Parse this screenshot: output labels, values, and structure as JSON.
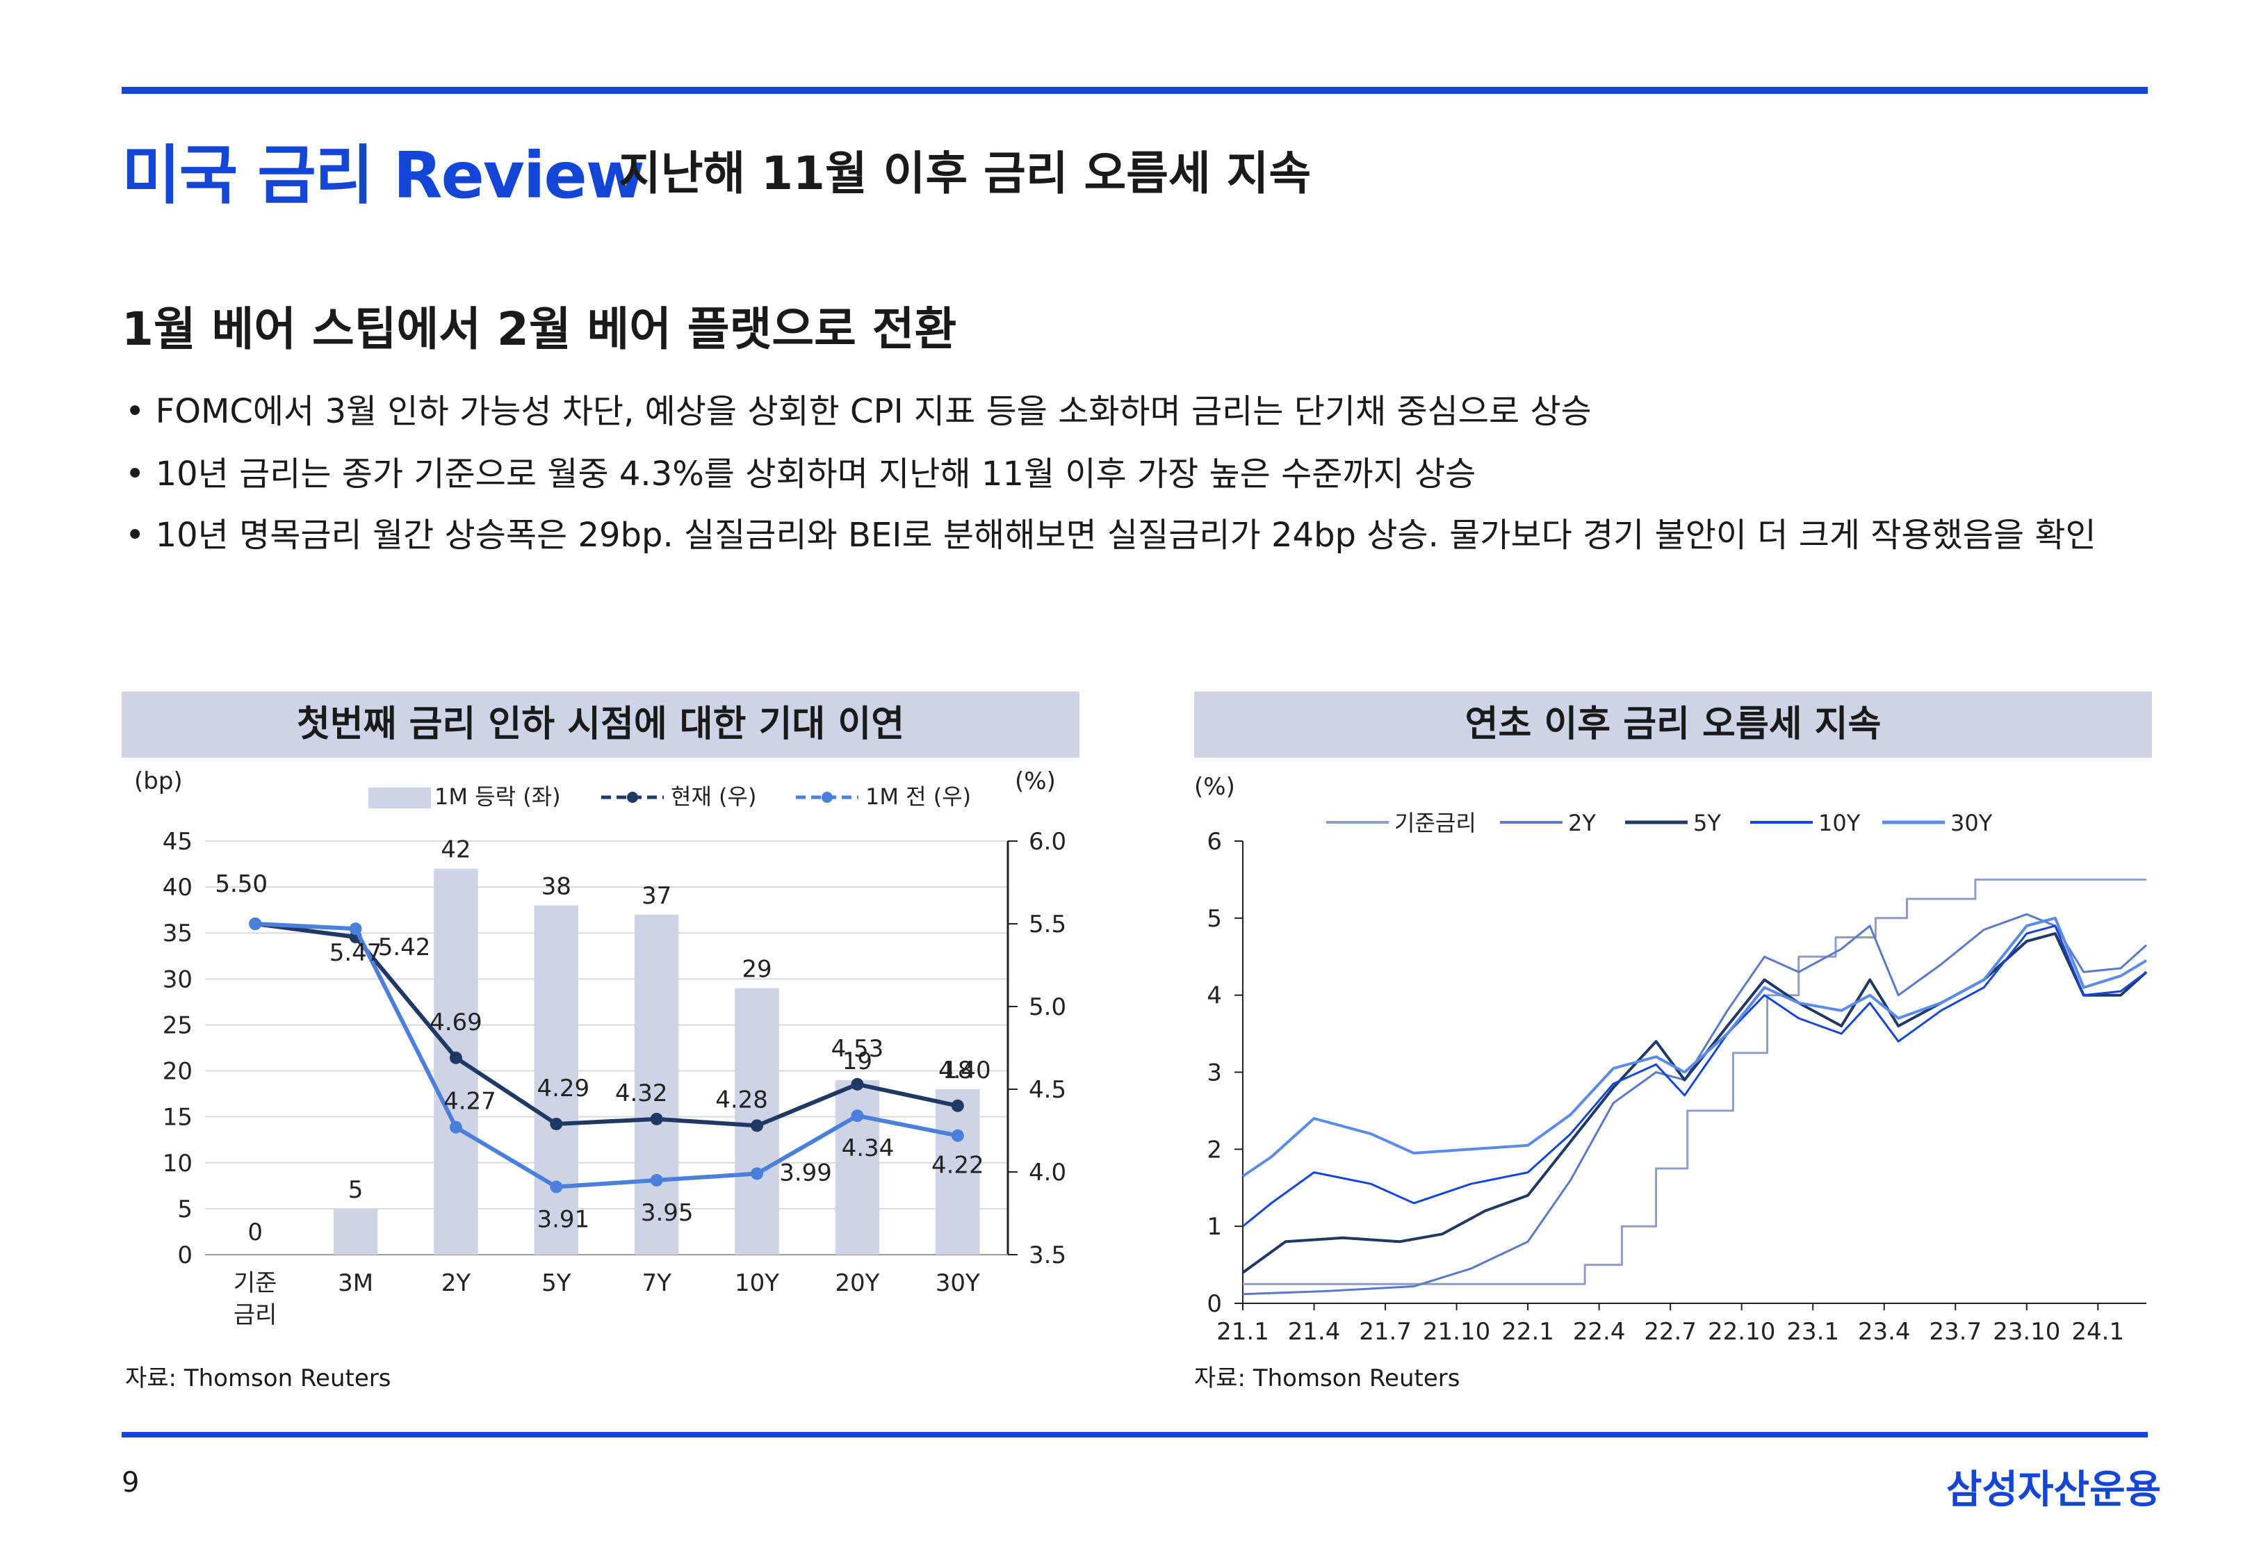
{
  "header": {
    "title": "미국 금리 Review",
    "subtitle": "지난해 11월 이후 금리 오름세 지속"
  },
  "section_heading": "1월 베어 스팁에서 2월 베어 플랫으로 전환",
  "bullets": [
    "FOMC에서 3월 인하 가능성 차단, 예상을 상회한 CPI 지표 등을 소화하며 금리는 단기채 중심으로 상승",
    "10년 금리는 종가 기준으로 월중 4.3%를 상회하며 지난해 11월 이후 가장 높은 수준까지 상승",
    "10년 명목금리 월간 상승폭은 29bp. 실질금리와 BEI로 분해해보면 실질금리가 24bp 상승. 물가보다 경기 불안이 더 크게 작용했음을 확인"
  ],
  "footer": {
    "page_number": "9",
    "brand": "삼성자산운용"
  },
  "colors": {
    "accent": "#1346d6",
    "panel_bg": "#cfd3e6"
  },
  "chart_data": [
    {
      "type": "bar",
      "title": "첫번째 금리 인하 시점에 대한 기대 이연",
      "source": "자료: Thomson Reuters",
      "left_axis_unit": "(bp)",
      "right_axis_unit": "(%)",
      "categories": [
        "기준\n금리",
        "3M",
        "2Y",
        "5Y",
        "7Y",
        "10Y",
        "20Y",
        "30Y"
      ],
      "left_ylim": [
        0,
        45
      ],
      "left_ticks": [
        "0",
        "5",
        "10",
        "15",
        "20",
        "25",
        "30",
        "35",
        "40",
        "45"
      ],
      "right_ylim": [
        3.5,
        6.0
      ],
      "right_ticks": [
        "3.5",
        "4.0",
        "4.5",
        "5.0",
        "5.5",
        "6.0"
      ],
      "legend": [
        "1M 등락 (좌)",
        "현재 (우)",
        "1M 전 (우)"
      ],
      "series": [
        {
          "name": "1M 등락 (좌)",
          "type": "bar",
          "axis": "left",
          "color": "#cfd3e6",
          "values": [
            0,
            5,
            42,
            38,
            37,
            29,
            19,
            18
          ],
          "labels": [
            "0",
            "5",
            "42",
            "38",
            "37",
            "29",
            "19",
            "18"
          ]
        },
        {
          "name": "현재 (우)",
          "type": "line",
          "axis": "right",
          "color": "#1f3864",
          "values": [
            5.5,
            5.42,
            4.69,
            4.29,
            4.32,
            4.28,
            4.53,
            4.4
          ],
          "labels": [
            "5.50",
            "5.42",
            "4.69",
            "4.29",
            "4.32",
            "4.28",
            "4.53",
            "4.40"
          ]
        },
        {
          "name": "1M 전 (우)",
          "type": "line",
          "axis": "right",
          "color": "#4a7fdc",
          "values": [
            5.5,
            5.47,
            4.27,
            3.91,
            3.95,
            3.99,
            4.34,
            4.22
          ],
          "labels": [
            "5.50",
            "5.47",
            "4.27",
            "3.91",
            "3.95",
            "3.99",
            "4.34",
            "4.22"
          ]
        }
      ]
    },
    {
      "type": "line",
      "title": "연초 이후 금리 오름세 지속",
      "source": "자료: Thomson Reuters",
      "y_unit": "(%)",
      "ylim": [
        0,
        6
      ],
      "y_ticks": [
        "0",
        "1",
        "2",
        "3",
        "4",
        "5",
        "6"
      ],
      "x_ticks": [
        "21.1",
        "21.4",
        "21.7",
        "21.10",
        "22.1",
        "22.4",
        "22.7",
        "22.10",
        "23.1",
        "23.4",
        "23.7",
        "23.10",
        "24.1"
      ],
      "x_tick_values": [
        2021.0,
        2021.25,
        2021.5,
        2021.75,
        2022.0,
        2022.25,
        2022.5,
        2022.75,
        2023.0,
        2023.25,
        2023.5,
        2023.75,
        2024.0
      ],
      "xlim": [
        2021.0,
        2024.17
      ],
      "legend": [
        "기준금리",
        "2Y",
        "5Y",
        "10Y",
        "30Y"
      ],
      "series": [
        {
          "name": "기준금리",
          "color": "#8f9cc8",
          "width": 3,
          "step": true,
          "x": [
            2021.0,
            2022.2,
            2022.2,
            2022.33,
            2022.33,
            2022.45,
            2022.45,
            2022.56,
            2022.56,
            2022.72,
            2022.72,
            2022.84,
            2022.84,
            2022.95,
            2022.95,
            2023.08,
            2023.08,
            2023.22,
            2023.22,
            2023.33,
            2023.33,
            2023.57,
            2023.57,
            2024.17
          ],
          "y": [
            0.25,
            0.25,
            0.5,
            0.5,
            1.0,
            1.0,
            1.75,
            1.75,
            2.5,
            2.5,
            3.25,
            3.25,
            4.0,
            4.0,
            4.5,
            4.5,
            4.75,
            4.75,
            5.0,
            5.0,
            5.25,
            5.25,
            5.5,
            5.5
          ]
        },
        {
          "name": "2Y",
          "color": "#5a78c8",
          "width": 3,
          "step": false,
          "x": [
            2021.0,
            2021.3,
            2021.6,
            2021.8,
            2022.0,
            2022.15,
            2022.3,
            2022.45,
            2022.55,
            2022.7,
            2022.83,
            2022.95,
            2023.1,
            2023.2,
            2023.3,
            2023.45,
            2023.6,
            2023.75,
            2023.85,
            2023.95,
            2024.08,
            2024.17
          ],
          "y": [
            0.12,
            0.16,
            0.22,
            0.45,
            0.8,
            1.6,
            2.6,
            3.0,
            2.9,
            3.8,
            4.5,
            4.3,
            4.6,
            4.9,
            4.0,
            4.4,
            4.85,
            5.05,
            4.9,
            4.3,
            4.35,
            4.65
          ]
        },
        {
          "name": "5Y",
          "color": "#1f3864",
          "width": 4,
          "step": false,
          "x": [
            2021.0,
            2021.15,
            2021.35,
            2021.55,
            2021.7,
            2021.85,
            2022.0,
            2022.15,
            2022.3,
            2022.45,
            2022.55,
            2022.7,
            2022.83,
            2022.95,
            2023.1,
            2023.2,
            2023.3,
            2023.45,
            2023.6,
            2023.75,
            2023.85,
            2023.95,
            2024.08,
            2024.17
          ],
          "y": [
            0.4,
            0.8,
            0.85,
            0.8,
            0.9,
            1.2,
            1.4,
            2.1,
            2.8,
            3.4,
            2.9,
            3.6,
            4.2,
            3.9,
            3.6,
            4.2,
            3.6,
            3.9,
            4.2,
            4.7,
            4.8,
            4.0,
            4.0,
            4.3
          ]
        },
        {
          "name": "10Y",
          "color": "#1346d6",
          "width": 3,
          "step": false,
          "x": [
            2021.0,
            2021.1,
            2021.25,
            2021.45,
            2021.6,
            2021.8,
            2022.0,
            2022.15,
            2022.3,
            2022.45,
            2022.55,
            2022.7,
            2022.83,
            2022.95,
            2023.1,
            2023.2,
            2023.3,
            2023.45,
            2023.6,
            2023.75,
            2023.85,
            2023.95,
            2024.08,
            2024.17
          ],
          "y": [
            1.0,
            1.3,
            1.7,
            1.55,
            1.3,
            1.55,
            1.7,
            2.2,
            2.85,
            3.1,
            2.7,
            3.5,
            4.0,
            3.7,
            3.5,
            3.9,
            3.4,
            3.8,
            4.1,
            4.8,
            4.9,
            4.0,
            4.05,
            4.3
          ]
        },
        {
          "name": "30Y",
          "color": "#5b8be8",
          "width": 4,
          "step": false,
          "x": [
            2021.0,
            2021.1,
            2021.25,
            2021.45,
            2021.6,
            2021.8,
            2022.0,
            2022.15,
            2022.3,
            2022.45,
            2022.55,
            2022.7,
            2022.83,
            2022.95,
            2023.1,
            2023.2,
            2023.3,
            2023.45,
            2023.6,
            2023.75,
            2023.85,
            2023.95,
            2024.08,
            2024.17
          ],
          "y": [
            1.65,
            1.9,
            2.4,
            2.2,
            1.95,
            2.0,
            2.05,
            2.45,
            3.05,
            3.2,
            3.0,
            3.5,
            4.1,
            3.9,
            3.8,
            4.0,
            3.7,
            3.9,
            4.2,
            4.9,
            5.0,
            4.1,
            4.25,
            4.45
          ]
        }
      ]
    }
  ]
}
